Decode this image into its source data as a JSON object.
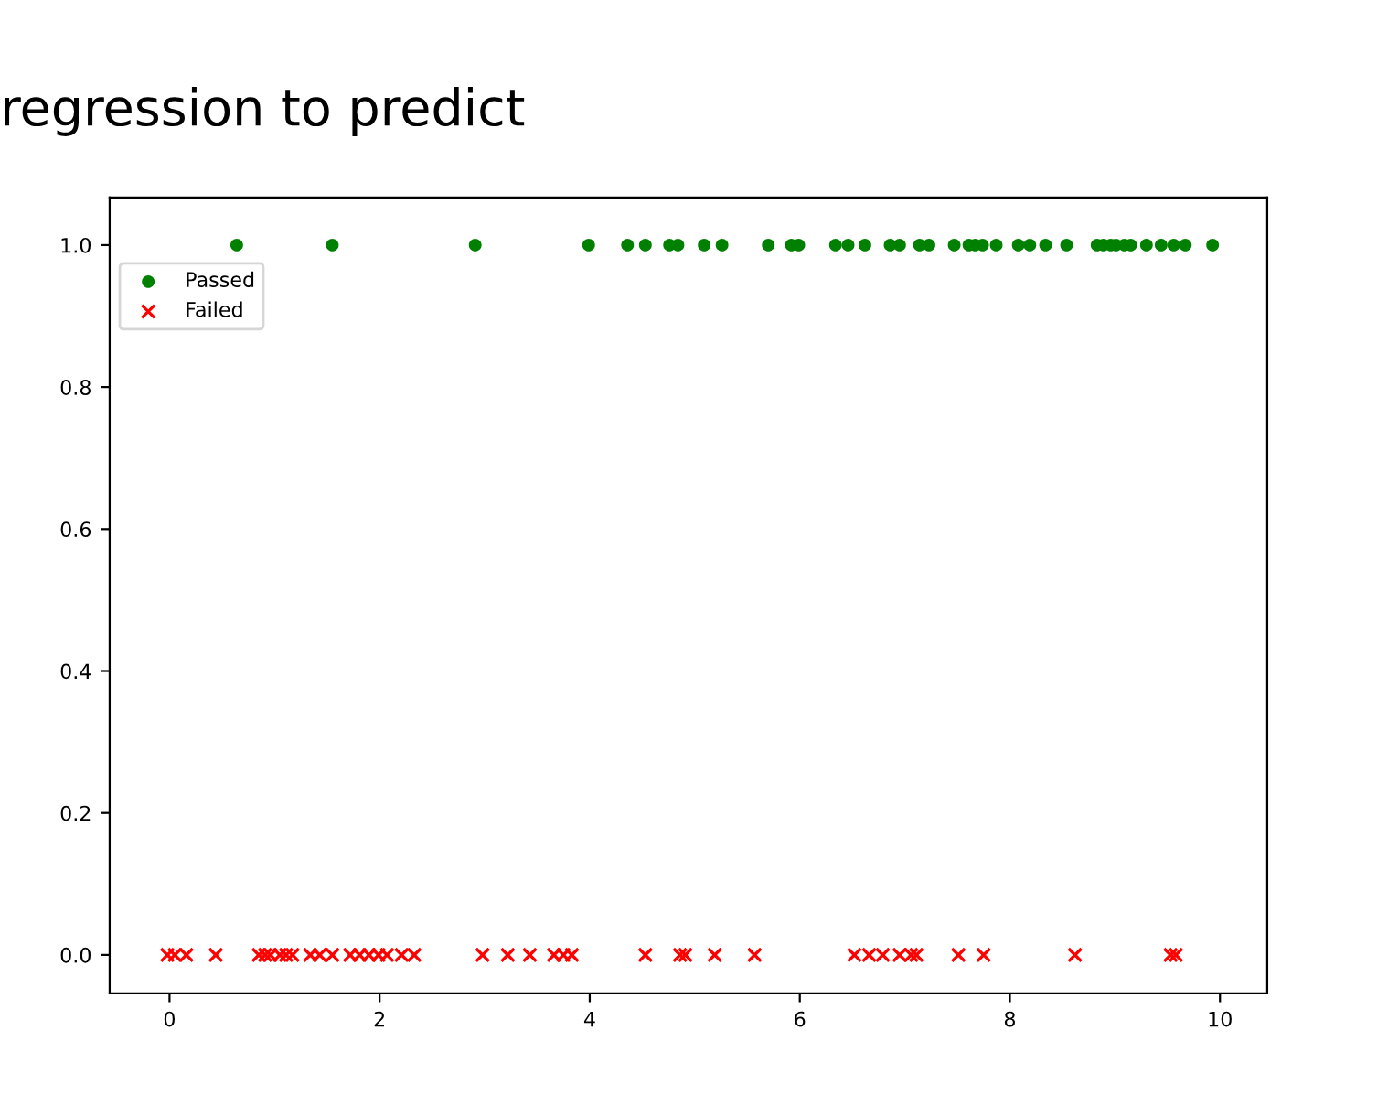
{
  "chart_data": {
    "type": "scatter",
    "title": "regression to predict",
    "xlim": [
      -0.57,
      10.45
    ],
    "ylim": [
      -0.054,
      1.067
    ],
    "xticks": [
      0,
      2,
      4,
      6,
      8,
      10
    ],
    "yticks": [
      {
        "value": 0,
        "label": "0.0"
      },
      {
        "value": 0.2,
        "label": "0.2"
      },
      {
        "value": 0.4,
        "label": "0.4"
      },
      {
        "value": 0.6,
        "label": "0.6"
      },
      {
        "value": 0.8,
        "label": "0.8"
      },
      {
        "value": 1,
        "label": "1.0"
      }
    ],
    "legend": "top left",
    "grid": false,
    "series": [
      {
        "name": "Passed",
        "color": "#008000",
        "marker": "circle",
        "x": [
          0.64,
          1.55,
          2.91,
          3.99,
          4.36,
          4.53,
          4.76,
          4.84,
          5.09,
          5.26,
          5.7,
          5.92,
          5.99,
          6.34,
          6.46,
          6.62,
          6.86,
          6.95,
          7.14,
          7.23,
          7.47,
          7.61,
          7.67,
          7.74,
          7.87,
          8.08,
          8.19,
          8.34,
          8.54,
          8.83,
          8.89,
          8.96,
          9.01,
          9.09,
          9.15,
          9.3,
          9.44,
          9.56,
          9.62,
          9.67,
          9.93
        ],
        "values": [
          1,
          1,
          1,
          1,
          1,
          1,
          1,
          1,
          1,
          1,
          1,
          1,
          1,
          1,
          1,
          1,
          1,
          1,
          1,
          1,
          1,
          1,
          1,
          1,
          1,
          1,
          1,
          1,
          1,
          1,
          1,
          1,
          1,
          1,
          1,
          1,
          1,
          1,
          null,
          1,
          1
        ]
      },
      {
        "name": "Failed",
        "color": "#ff0000",
        "marker": "cross",
        "x": [
          -0.02,
          0.05,
          0.16,
          0.44,
          0.85,
          0.91,
          0.96,
          1.05,
          1.11,
          1.17,
          1.34,
          1.43,
          1.55,
          1.72,
          1.81,
          1.9,
          1.99,
          2.07,
          2.21,
          2.33,
          2.98,
          3.22,
          3.43,
          3.66,
          3.75,
          3.83,
          4.53,
          4.86,
          4.91,
          5.19,
          5.57,
          6.52,
          6.66,
          6.79,
          6.95,
          7.06,
          7.11,
          7.51,
          7.75,
          8.62,
          9.53,
          9.58
        ],
        "values": [
          0,
          0,
          0,
          0,
          0,
          0,
          0,
          0,
          0,
          0,
          0,
          0,
          0,
          0,
          0,
          0,
          0,
          0,
          0,
          0,
          0,
          0,
          0,
          0,
          0,
          0,
          0,
          0,
          0,
          0,
          0,
          0,
          0,
          0,
          0,
          0,
          0,
          0,
          0,
          0,
          0,
          0
        ]
      }
    ]
  }
}
